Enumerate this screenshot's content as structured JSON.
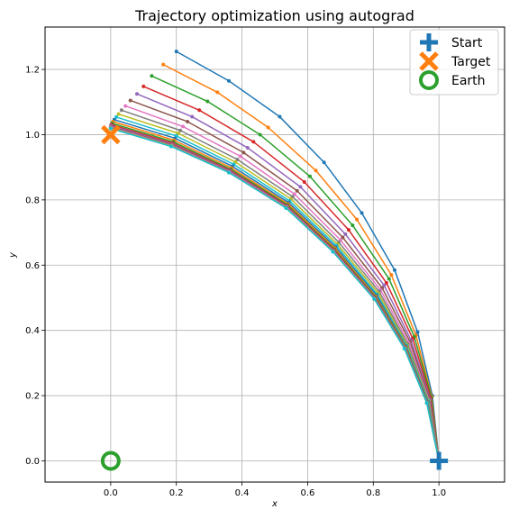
{
  "chart_data": {
    "type": "line",
    "title": "Trajectory optimization using autograd",
    "xlabel": "x",
    "ylabel": "y",
    "xlim": [
      -0.2,
      1.2
    ],
    "ylim": [
      -0.065,
      1.33
    ],
    "xticks": [
      0.0,
      0.2,
      0.4,
      0.6,
      0.8,
      1.0
    ],
    "yticks": [
      0.0,
      0.2,
      0.4,
      0.6,
      0.8,
      1.0,
      1.2
    ],
    "grid": true,
    "series": [
      {
        "color": "#1f77b4",
        "points": [
          [
            1.0,
            0.0
          ],
          [
            0.98,
            0.2
          ],
          [
            0.935,
            0.395
          ],
          [
            0.865,
            0.585
          ],
          [
            0.765,
            0.76
          ],
          [
            0.65,
            0.915
          ],
          [
            0.515,
            1.055
          ],
          [
            0.36,
            1.165
          ],
          [
            0.2,
            1.255
          ]
        ]
      },
      {
        "color": "#ff7f0e",
        "points": [
          [
            1.0,
            0.0
          ],
          [
            0.978,
            0.197
          ],
          [
            0.93,
            0.385
          ],
          [
            0.855,
            0.57
          ],
          [
            0.75,
            0.74
          ],
          [
            0.625,
            0.89
          ],
          [
            0.48,
            1.022
          ],
          [
            0.325,
            1.13
          ],
          [
            0.16,
            1.215
          ]
        ]
      },
      {
        "color": "#2ca02c",
        "points": [
          [
            1.0,
            0.0
          ],
          [
            0.977,
            0.195
          ],
          [
            0.925,
            0.38
          ],
          [
            0.848,
            0.558
          ],
          [
            0.737,
            0.722
          ],
          [
            0.607,
            0.872
          ],
          [
            0.455,
            1.0
          ],
          [
            0.295,
            1.102
          ],
          [
            0.125,
            1.18
          ]
        ]
      },
      {
        "color": "#d62728",
        "points": [
          [
            1.0,
            0.0
          ],
          [
            0.975,
            0.193
          ],
          [
            0.92,
            0.375
          ],
          [
            0.84,
            0.546
          ],
          [
            0.725,
            0.708
          ],
          [
            0.59,
            0.855
          ],
          [
            0.435,
            0.978
          ],
          [
            0.27,
            1.075
          ],
          [
            0.1,
            1.148
          ]
        ]
      },
      {
        "color": "#9467bd",
        "points": [
          [
            1.0,
            0.0
          ],
          [
            0.973,
            0.19
          ],
          [
            0.915,
            0.37
          ],
          [
            0.833,
            0.538
          ],
          [
            0.715,
            0.695
          ],
          [
            0.578,
            0.84
          ],
          [
            0.417,
            0.96
          ],
          [
            0.248,
            1.055
          ],
          [
            0.08,
            1.125
          ]
        ]
      },
      {
        "color": "#8c564b",
        "points": [
          [
            1.0,
            0.0
          ],
          [
            0.972,
            0.188
          ],
          [
            0.912,
            0.365
          ],
          [
            0.827,
            0.53
          ],
          [
            0.707,
            0.685
          ],
          [
            0.568,
            0.828
          ],
          [
            0.405,
            0.945
          ],
          [
            0.234,
            1.04
          ],
          [
            0.06,
            1.105
          ]
        ]
      },
      {
        "color": "#e377c2",
        "points": [
          [
            1.0,
            0.0
          ],
          [
            0.97,
            0.186
          ],
          [
            0.908,
            0.362
          ],
          [
            0.822,
            0.524
          ],
          [
            0.7,
            0.677
          ],
          [
            0.56,
            0.818
          ],
          [
            0.395,
            0.934
          ],
          [
            0.22,
            1.025
          ],
          [
            0.045,
            1.088
          ]
        ]
      },
      {
        "color": "#7f7f7f",
        "points": [
          [
            1.0,
            0.0
          ],
          [
            0.969,
            0.185
          ],
          [
            0.905,
            0.358
          ],
          [
            0.818,
            0.519
          ],
          [
            0.695,
            0.67
          ],
          [
            0.554,
            0.81
          ],
          [
            0.386,
            0.924
          ],
          [
            0.212,
            1.013
          ],
          [
            0.033,
            1.075
          ]
        ]
      },
      {
        "color": "#bcbd22",
        "points": [
          [
            1.0,
            0.0
          ],
          [
            0.968,
            0.184
          ],
          [
            0.903,
            0.355
          ],
          [
            0.815,
            0.514
          ],
          [
            0.691,
            0.664
          ],
          [
            0.549,
            0.803
          ],
          [
            0.38,
            0.916
          ],
          [
            0.206,
            1.004
          ],
          [
            0.024,
            1.063
          ]
        ]
      },
      {
        "color": "#17becf",
        "points": [
          [
            1.0,
            0.0
          ],
          [
            0.967,
            0.183
          ],
          [
            0.901,
            0.353
          ],
          [
            0.812,
            0.51
          ],
          [
            0.688,
            0.659
          ],
          [
            0.545,
            0.797
          ],
          [
            0.375,
            0.909
          ],
          [
            0.2,
            0.996
          ],
          [
            0.017,
            1.054
          ]
        ]
      },
      {
        "color": "#1f77b4",
        "points": [
          [
            1.0,
            0.0
          ],
          [
            0.966,
            0.182
          ],
          [
            0.9,
            0.351
          ],
          [
            0.81,
            0.507
          ],
          [
            0.685,
            0.655
          ],
          [
            0.542,
            0.792
          ],
          [
            0.371,
            0.903
          ],
          [
            0.196,
            0.989
          ],
          [
            0.011,
            1.046
          ]
        ]
      },
      {
        "color": "#ff7f0e",
        "points": [
          [
            1.0,
            0.0
          ],
          [
            0.965,
            0.181
          ],
          [
            0.899,
            0.349
          ],
          [
            0.808,
            0.504
          ],
          [
            0.683,
            0.652
          ],
          [
            0.54,
            0.788
          ],
          [
            0.368,
            0.898
          ],
          [
            0.193,
            0.983
          ],
          [
            0.007,
            1.04
          ]
        ]
      },
      {
        "color": "#2ca02c",
        "points": [
          [
            1.0,
            0.0
          ],
          [
            0.965,
            0.18
          ],
          [
            0.898,
            0.348
          ],
          [
            0.807,
            0.502
          ],
          [
            0.681,
            0.649
          ],
          [
            0.538,
            0.785
          ],
          [
            0.366,
            0.894
          ],
          [
            0.191,
            0.978
          ],
          [
            0.004,
            1.035
          ]
        ]
      },
      {
        "color": "#d62728",
        "points": [
          [
            1.0,
            0.0
          ],
          [
            0.964,
            0.179
          ],
          [
            0.897,
            0.347
          ],
          [
            0.806,
            0.5
          ],
          [
            0.68,
            0.647
          ],
          [
            0.537,
            0.782
          ],
          [
            0.364,
            0.891
          ],
          [
            0.189,
            0.974
          ],
          [
            0.002,
            1.031
          ]
        ]
      },
      {
        "color": "#9467bd",
        "points": [
          [
            1.0,
            0.0
          ],
          [
            0.964,
            0.179
          ],
          [
            0.897,
            0.346
          ],
          [
            0.805,
            0.499
          ],
          [
            0.679,
            0.645
          ],
          [
            0.536,
            0.78
          ],
          [
            0.363,
            0.889
          ],
          [
            0.188,
            0.971
          ],
          [
            0.001,
            1.028
          ]
        ]
      },
      {
        "color": "#8c564b",
        "points": [
          [
            1.0,
            0.0
          ],
          [
            0.963,
            0.178
          ],
          [
            0.896,
            0.345
          ],
          [
            0.804,
            0.498
          ],
          [
            0.678,
            0.644
          ],
          [
            0.535,
            0.778
          ],
          [
            0.362,
            0.887
          ],
          [
            0.187,
            0.969
          ],
          [
            0.0,
            1.025
          ]
        ]
      },
      {
        "color": "#e377c2",
        "points": [
          [
            1.0,
            0.0
          ],
          [
            0.963,
            0.178
          ],
          [
            0.896,
            0.345
          ],
          [
            0.804,
            0.497
          ],
          [
            0.678,
            0.643
          ],
          [
            0.535,
            0.777
          ],
          [
            0.361,
            0.886
          ],
          [
            0.186,
            0.967
          ],
          [
            0.0,
            1.023
          ]
        ]
      },
      {
        "color": "#7f7f7f",
        "points": [
          [
            1.0,
            0.0
          ],
          [
            0.963,
            0.178
          ],
          [
            0.896,
            0.344
          ],
          [
            0.803,
            0.497
          ],
          [
            0.677,
            0.642
          ],
          [
            0.534,
            0.776
          ],
          [
            0.36,
            0.885
          ],
          [
            0.185,
            0.966
          ],
          [
            0.0,
            1.021
          ]
        ]
      },
      {
        "color": "#bcbd22",
        "points": [
          [
            1.0,
            0.0
          ],
          [
            0.963,
            0.177
          ],
          [
            0.895,
            0.344
          ],
          [
            0.803,
            0.496
          ],
          [
            0.677,
            0.642
          ],
          [
            0.534,
            0.776
          ],
          [
            0.36,
            0.884
          ],
          [
            0.185,
            0.965
          ],
          [
            0.0,
            1.02
          ]
        ]
      },
      {
        "color": "#17becf",
        "points": [
          [
            1.0,
            0.0
          ],
          [
            0.963,
            0.177
          ],
          [
            0.895,
            0.344
          ],
          [
            0.803,
            0.496
          ],
          [
            0.677,
            0.641
          ],
          [
            0.534,
            0.775
          ],
          [
            0.36,
            0.884
          ],
          [
            0.184,
            0.964
          ],
          [
            0.0,
            1.019
          ]
        ]
      }
    ],
    "markers": [
      {
        "name": "Start",
        "x": 1.0,
        "y": 0.0,
        "shape": "plus",
        "color": "#1f77b4"
      },
      {
        "name": "Target",
        "x": 0.0,
        "y": 1.0,
        "shape": "x",
        "color": "#ff7f0e"
      },
      {
        "name": "Earth",
        "x": 0.0,
        "y": 0.0,
        "shape": "circle",
        "color": "#2ca02c"
      }
    ],
    "legend": {
      "placement": "top-right",
      "entries": [
        "Start",
        "Target",
        "Earth"
      ]
    }
  }
}
